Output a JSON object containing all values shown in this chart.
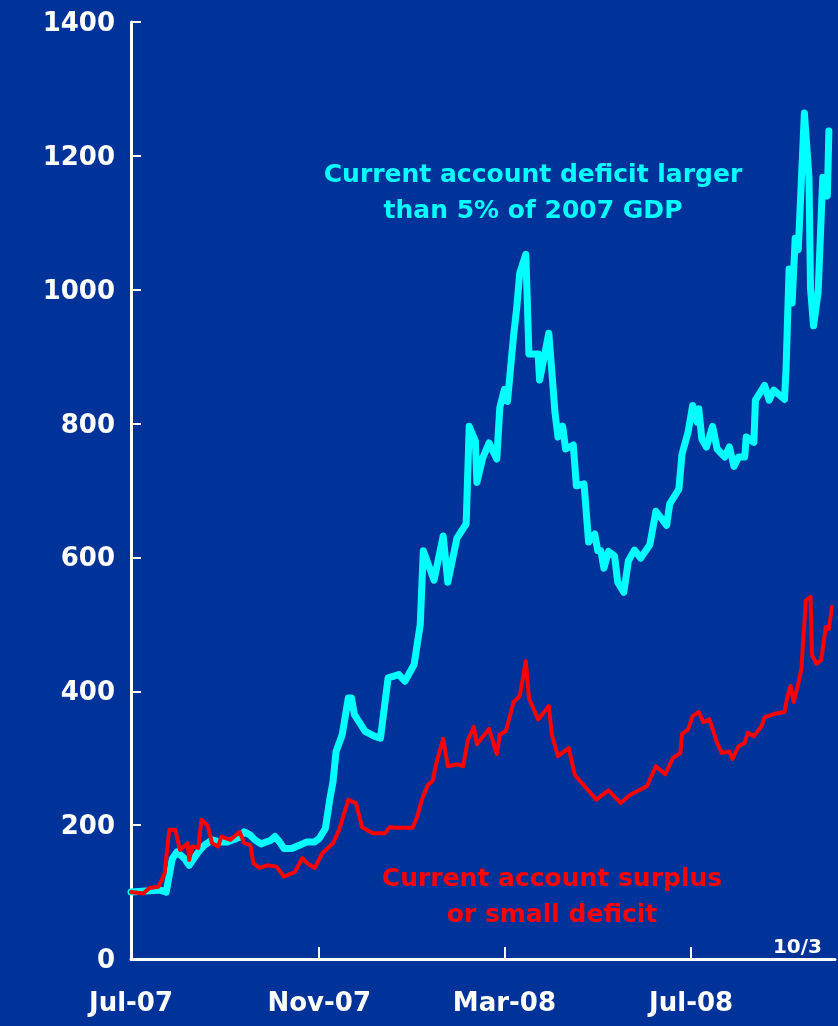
{
  "chart_data": {
    "type": "line",
    "ylim": [
      0,
      1400
    ],
    "yticks": [
      0,
      200,
      400,
      600,
      800,
      1000,
      1200,
      1400
    ],
    "xlim": [
      "2007-07-01",
      "2008-10-03"
    ],
    "xticks": [
      {
        "value": "2007-07-01",
        "label": "Jul-07"
      },
      {
        "value": "2007-11-01",
        "label": "Nov-07"
      },
      {
        "value": "2008-03-01",
        "label": "Mar-08"
      },
      {
        "value": "2008-07-01",
        "label": "Jul-08"
      }
    ],
    "grid": false,
    "legend": false,
    "marker": "none",
    "line_style": "solid",
    "annotations": [
      "10/3"
    ],
    "series": [
      {
        "name": "Current account deficit larger than 5% of 2007 GDP",
        "color": "#00ffff",
        "x": [
          "2007-07-01",
          "2007-07-20",
          "2007-07-24",
          "2007-07-28",
          "2007-07-31",
          "2007-08-05",
          "2007-08-08",
          "2007-08-14",
          "2007-08-18",
          "2007-08-23",
          "2007-08-28",
          "2007-09-02",
          "2007-09-10",
          "2007-09-13",
          "2007-09-17",
          "2007-09-20",
          "2007-09-24",
          "2007-09-30",
          "2007-10-03",
          "2007-10-06",
          "2007-10-09",
          "2007-10-14",
          "2007-10-19",
          "2007-10-24",
          "2007-10-29",
          "2007-11-01",
          "2007-11-05",
          "2007-11-08",
          "2007-11-10",
          "2007-11-12",
          "2007-11-16",
          "2007-11-20",
          "2007-11-22",
          "2007-11-24",
          "2007-12-01",
          "2007-12-07",
          "2007-12-11",
          "2007-12-16",
          "2007-12-23",
          "2007-12-27",
          "2008-01-02",
          "2008-01-06",
          "2008-01-08",
          "2008-01-15",
          "2008-01-21",
          "2008-01-24",
          "2008-01-30",
          "2008-02-05",
          "2008-02-07",
          "2008-02-11",
          "2008-02-12",
          "2008-02-16",
          "2008-02-20",
          "2008-02-25",
          "2008-02-27",
          "2008-03-01",
          "2008-03-03",
          "2008-03-07",
          "2008-03-09",
          "2008-03-11",
          "2008-03-15",
          "2008-03-17",
          "2008-03-23",
          "2008-03-24",
          "2008-03-30",
          "2008-04-02",
          "2008-04-03",
          "2008-04-05",
          "2008-04-08",
          "2008-04-10",
          "2008-04-15",
          "2008-04-17",
          "2008-04-22",
          "2008-04-25",
          "2008-04-29",
          "2008-05-01",
          "2008-05-03",
          "2008-05-05",
          "2008-05-08",
          "2008-05-12",
          "2008-05-14",
          "2008-05-18",
          "2008-05-21",
          "2008-05-25",
          "2008-05-29",
          "2008-06-04",
          "2008-06-08",
          "2008-06-15",
          "2008-06-17",
          "2008-06-23",
          "2008-06-25",
          "2008-06-29",
          "2008-07-02",
          "2008-07-05",
          "2008-07-06",
          "2008-07-08",
          "2008-07-11",
          "2008-07-15",
          "2008-07-18",
          "2008-07-23",
          "2008-07-26",
          "2008-07-29",
          "2008-08-01",
          "2008-08-05",
          "2008-08-06",
          "2008-08-11",
          "2008-08-12",
          "2008-08-18",
          "2008-08-21",
          "2008-08-24",
          "2008-08-31",
          "2008-09-01",
          "2008-09-03",
          "2008-09-05",
          "2008-09-07",
          "2008-09-09",
          "2008-09-13",
          "2008-09-16",
          "2008-09-17",
          "2008-09-19",
          "2008-09-22",
          "2008-09-25",
          "2008-09-28",
          "2008-09-29"
        ],
        "values": [
          100,
          103,
          100,
          150,
          160,
          150,
          140,
          160,
          170,
          178,
          175,
          175,
          182,
          190,
          185,
          178,
          172,
          177,
          183,
          175,
          165,
          165,
          170,
          175,
          175,
          180,
          195,
          240,
          265,
          310,
          335,
          390,
          390,
          365,
          340,
          333,
          330,
          420,
          425,
          415,
          440,
          500,
          610,
          566,
          632,
          563,
          629,
          650,
          796,
          774,
          712,
          750,
          771,
          747,
          824,
          851,
          833,
          932,
          972,
          1025,
          1053,
          904,
          904,
          865,
          935,
          848,
          817,
          780,
          796,
          762,
          768,
          707,
          710,
          623,
          635,
          610,
          610,
          584,
          609,
          602,
          563,
          548,
          595,
          611,
          599,
          619,
          669,
          648,
          680,
          702,
          754,
          787,
          827,
          802,
          822,
          777,
          765,
          796,
          762,
          750,
          765,
          736,
          750,
          750,
          780,
          772,
          835,
          857,
          835,
          850,
          836,
          880,
          1031,
          980,
          1077,
          1060,
          1264,
          1168,
          1002,
          946,
          997,
          1168,
          1140,
          1237
        ]
      },
      {
        "name": "Current account surplus or small deficit",
        "color": "#ff0000",
        "x": [
          "2007-07-01",
          "2007-07-09",
          "2007-07-13",
          "2007-07-19",
          "2007-07-23",
          "2007-07-26",
          "2007-07-30",
          "2007-08-02",
          "2007-08-07",
          "2007-08-08",
          "2007-08-10",
          "2007-08-14",
          "2007-08-16",
          "2007-08-20",
          "2007-08-23",
          "2007-08-27",
          "2007-08-29",
          "2007-09-04",
          "2007-09-10",
          "2007-09-13",
          "2007-09-17",
          "2007-09-19",
          "2007-09-23",
          "2007-09-28",
          "2007-10-04",
          "2007-10-09",
          "2007-10-16",
          "2007-10-21",
          "2007-10-24",
          "2007-10-29",
          "2007-11-03",
          "2007-11-10",
          "2007-11-14",
          "2007-11-20",
          "2007-11-25",
          "2007-11-29",
          "2007-12-06",
          "2007-12-14",
          "2007-12-17",
          "2007-12-22",
          "2008-01-01",
          "2008-01-04",
          "2008-01-07",
          "2008-01-11",
          "2008-01-14",
          "2008-01-17",
          "2008-01-21",
          "2008-01-24",
          "2008-01-30",
          "2008-02-03",
          "2008-02-06",
          "2008-02-10",
          "2008-02-12",
          "2008-02-20",
          "2008-02-25",
          "2008-02-27",
          "2008-03-02",
          "2008-03-07",
          "2008-03-11",
          "2008-03-15",
          "2008-03-17",
          "2008-03-23",
          "2008-03-30",
          "2008-04-01",
          "2008-04-05",
          "2008-04-12",
          "2008-04-16",
          "2008-04-24",
          "2008-04-30",
          "2008-05-08",
          "2008-05-16",
          "2008-05-22",
          "2008-06-02",
          "2008-06-08",
          "2008-06-14",
          "2008-06-19",
          "2008-06-24",
          "2008-06-25",
          "2008-06-29",
          "2008-07-02",
          "2008-07-06",
          "2008-07-09",
          "2008-07-13",
          "2008-07-18",
          "2008-07-21",
          "2008-07-26",
          "2008-07-28",
          "2008-08-01",
          "2008-08-05",
          "2008-08-07",
          "2008-08-11",
          "2008-08-16",
          "2008-08-18",
          "2008-08-24",
          "2008-08-31",
          "2008-09-02",
          "2008-09-04",
          "2008-09-06",
          "2008-09-09",
          "2008-09-11",
          "2008-09-14",
          "2008-09-17",
          "2008-09-18",
          "2008-09-21",
          "2008-09-24",
          "2008-09-27",
          "2008-09-29",
          "2008-10-01"
        ],
        "values": [
          100,
          98,
          106,
          108,
          128,
          193,
          193,
          163,
          173,
          148,
          168,
          166,
          208,
          200,
          173,
          168,
          183,
          178,
          190,
          173,
          170,
          143,
          136,
          140,
          138,
          123,
          130,
          151,
          143,
          136,
          158,
          173,
          193,
          238,
          233,
          197,
          188,
          188,
          197,
          196,
          196,
          212,
          238,
          260,
          266,
          297,
          329,
          288,
          291,
          288,
          326,
          347,
          321,
          344,
          306,
          335,
          341,
          384,
          393,
          445,
          390,
          358,
          378,
          335,
          303,
          315,
          275,
          254,
          238,
          252,
          233,
          245,
          258,
          288,
          276,
          300,
          308,
          336,
          343,
          363,
          369,
          354,
          358,
          323,
          308,
          310,
          299,
          318,
          323,
          338,
          333,
          348,
          361,
          366,
          369,
          393,
          408,
          384,
          411,
          433,
          536,
          541,
          454,
          441,
          447,
          496,
          493,
          526
        ]
      }
    ]
  }
}
